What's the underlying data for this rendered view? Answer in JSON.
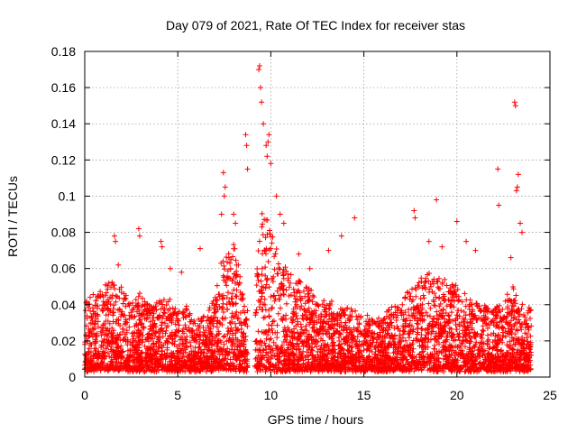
{
  "chart_data": {
    "type": "scatter",
    "title": "Day 079 of 2021, Rate Of TEC Index for receiver stas",
    "xlabel": "GPS time / hours",
    "ylabel": "ROTI / TECUs",
    "xlim": [
      0,
      25
    ],
    "ylim": [
      0,
      0.18
    ],
    "xticks": [
      0,
      5,
      10,
      15,
      20,
      25
    ],
    "yticks": [
      0,
      0.02,
      0.04,
      0.06,
      0.08,
      0.1,
      0.12,
      0.14,
      0.16,
      0.18
    ],
    "xtick_labels": [
      "0",
      "5",
      "10",
      "15",
      "20",
      "25"
    ],
    "ytick_labels": [
      "0",
      "0.02",
      "0.04",
      "0.06",
      "0.08",
      "0.1",
      "0.12",
      "0.14",
      "0.16",
      "0.18"
    ],
    "grid": true,
    "marker": "+",
    "color": "#ff0000",
    "envelope_note": "approximate upper envelope of the dense point cloud (hours, ROTI)",
    "envelope": [
      [
        0.0,
        0.038
      ],
      [
        0.5,
        0.042
      ],
      [
        1.0,
        0.045
      ],
      [
        1.5,
        0.05
      ],
      [
        2.0,
        0.045
      ],
      [
        2.5,
        0.04
      ],
      [
        3.0,
        0.042
      ],
      [
        3.5,
        0.035
      ],
      [
        4.0,
        0.038
      ],
      [
        4.5,
        0.04
      ],
      [
        5.0,
        0.035
      ],
      [
        5.5,
        0.035
      ],
      [
        6.0,
        0.03
      ],
      [
        6.5,
        0.03
      ],
      [
        7.0,
        0.04
      ],
      [
        7.3,
        0.06
      ],
      [
        7.7,
        0.065
      ],
      [
        8.0,
        0.07
      ],
      [
        8.3,
        0.055
      ],
      [
        8.7,
        0.03
      ],
      [
        9.2,
        0.06
      ],
      [
        9.5,
        0.09
      ],
      [
        9.8,
        0.085
      ],
      [
        10.2,
        0.075
      ],
      [
        10.6,
        0.06
      ],
      [
        11.0,
        0.055
      ],
      [
        11.5,
        0.05
      ],
      [
        12.0,
        0.045
      ],
      [
        12.5,
        0.04
      ],
      [
        13.0,
        0.038
      ],
      [
        13.5,
        0.036
      ],
      [
        14.0,
        0.035
      ],
      [
        14.5,
        0.034
      ],
      [
        15.0,
        0.03
      ],
      [
        15.5,
        0.028
      ],
      [
        16.0,
        0.032
      ],
      [
        16.5,
        0.035
      ],
      [
        17.0,
        0.04
      ],
      [
        17.5,
        0.045
      ],
      [
        18.0,
        0.05
      ],
      [
        18.5,
        0.055
      ],
      [
        19.0,
        0.05
      ],
      [
        19.5,
        0.048
      ],
      [
        20.0,
        0.045
      ],
      [
        20.5,
        0.04
      ],
      [
        21.0,
        0.038
      ],
      [
        21.5,
        0.036
      ],
      [
        22.0,
        0.035
      ],
      [
        22.5,
        0.038
      ],
      [
        23.0,
        0.045
      ],
      [
        23.5,
        0.04
      ],
      [
        24.0,
        0.035
      ]
    ],
    "outliers": [
      [
        9.4,
        0.172
      ],
      [
        9.35,
        0.17
      ],
      [
        9.45,
        0.16
      ],
      [
        9.5,
        0.152
      ],
      [
        9.6,
        0.14
      ],
      [
        9.9,
        0.134
      ],
      [
        9.85,
        0.13
      ],
      [
        9.75,
        0.128
      ],
      [
        9.8,
        0.122
      ],
      [
        10.0,
        0.118
      ],
      [
        8.65,
        0.134
      ],
      [
        8.7,
        0.128
      ],
      [
        8.75,
        0.115
      ],
      [
        7.45,
        0.113
      ],
      [
        7.55,
        0.105
      ],
      [
        7.35,
        0.09
      ],
      [
        7.5,
        0.1
      ],
      [
        8.0,
        0.09
      ],
      [
        8.1,
        0.085
      ],
      [
        10.3,
        0.1
      ],
      [
        10.5,
        0.09
      ],
      [
        10.7,
        0.085
      ],
      [
        23.1,
        0.152
      ],
      [
        23.15,
        0.15
      ],
      [
        23.3,
        0.112
      ],
      [
        23.25,
        0.105
      ],
      [
        23.2,
        0.103
      ],
      [
        22.2,
        0.115
      ],
      [
        22.25,
        0.095
      ],
      [
        18.9,
        0.098
      ],
      [
        20.0,
        0.086
      ],
      [
        17.7,
        0.092
      ],
      [
        17.75,
        0.088
      ],
      [
        14.5,
        0.088
      ],
      [
        13.8,
        0.078
      ],
      [
        1.6,
        0.078
      ],
      [
        1.65,
        0.075
      ],
      [
        2.9,
        0.082
      ],
      [
        2.95,
        0.078
      ],
      [
        4.1,
        0.075
      ],
      [
        4.15,
        0.072
      ],
      [
        6.2,
        0.071
      ],
      [
        13.1,
        0.07
      ],
      [
        11.5,
        0.068
      ],
      [
        18.5,
        0.075
      ],
      [
        19.2,
        0.072
      ],
      [
        20.5,
        0.075
      ],
      [
        21.0,
        0.07
      ],
      [
        23.4,
        0.085
      ],
      [
        23.5,
        0.08
      ],
      [
        22.9,
        0.066
      ],
      [
        1.8,
        0.062
      ],
      [
        4.6,
        0.06
      ],
      [
        5.2,
        0.058
      ],
      [
        12.1,
        0.06
      ]
    ]
  }
}
